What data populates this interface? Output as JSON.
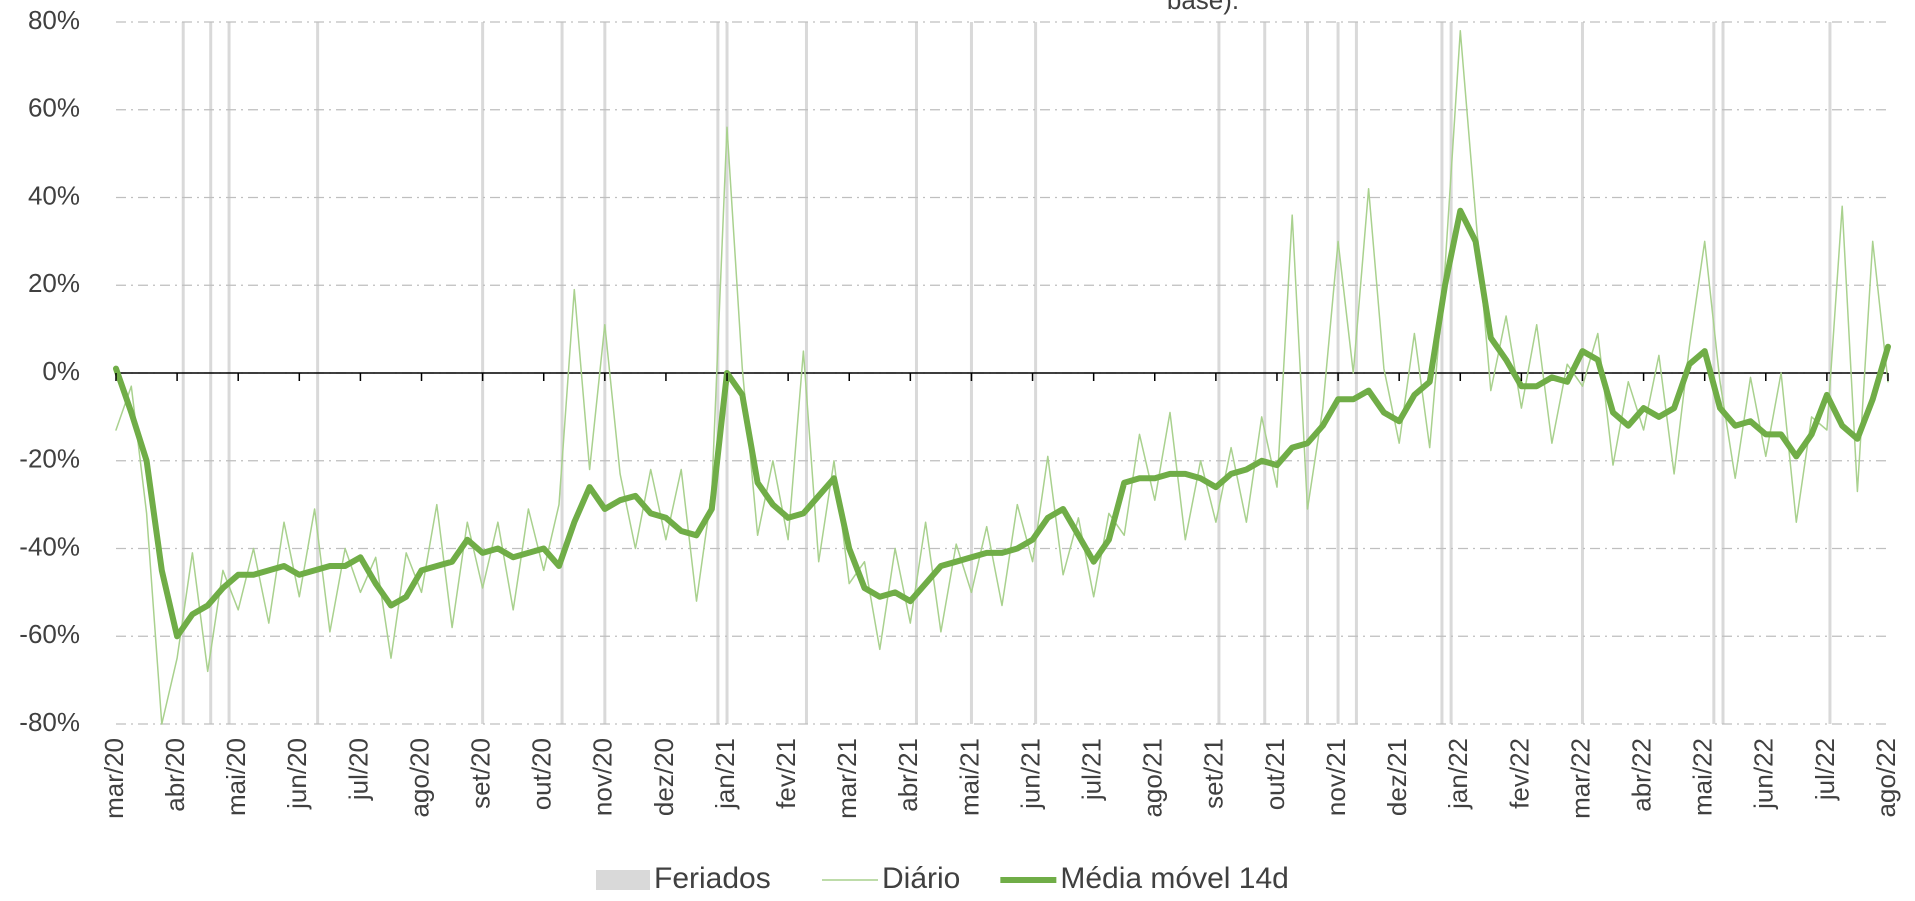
{
  "chart_data": {
    "type": "line",
    "title": "base).",
    "x": [
      0,
      0.25,
      0.5,
      0.75,
      1,
      1.25,
      1.5,
      1.75,
      2,
      2.25,
      2.5,
      2.75,
      3,
      3.25,
      3.5,
      3.75,
      4,
      4.25,
      4.5,
      4.75,
      5,
      5.25,
      5.5,
      5.75,
      6,
      6.25,
      6.5,
      6.75,
      7,
      7.25,
      7.5,
      7.75,
      8,
      8.25,
      8.5,
      8.75,
      9,
      9.25,
      9.5,
      9.75,
      10,
      10.25,
      10.5,
      10.75,
      11,
      11.25,
      11.5,
      11.75,
      12,
      12.25,
      12.5,
      12.75,
      13,
      13.25,
      13.5,
      13.75,
      14,
      14.25,
      14.5,
      14.75,
      15,
      15.25,
      15.5,
      15.75,
      16,
      16.25,
      16.5,
      16.75,
      17,
      17.25,
      17.5,
      17.75,
      18,
      18.25,
      18.5,
      18.75,
      19,
      19.25,
      19.5,
      19.75,
      20,
      20.25,
      20.5,
      20.75,
      21,
      21.25,
      21.5,
      21.75,
      22,
      22.25,
      22.5,
      22.75,
      23,
      23.25,
      23.5,
      23.75,
      24,
      24.25,
      24.5,
      24.75,
      25,
      25.25,
      25.5,
      25.75,
      26,
      26.25,
      26.5,
      26.75,
      27,
      27.25,
      27.5,
      27.75,
      28,
      28.25,
      28.5,
      28.75,
      29
    ],
    "series": [
      {
        "name": "Diário",
        "color": "#a9d18e",
        "width": 1.5,
        "values": [
          -13,
          -3,
          -32,
          -80,
          -65,
          -41,
          -68,
          -45,
          -54,
          -40,
          -57,
          -34,
          -51,
          -31,
          -59,
          -40,
          -50,
          -42,
          -65,
          -41,
          -50,
          -30,
          -58,
          -34,
          -49,
          -34,
          -54,
          -31,
          -45,
          -30,
          19,
          -22,
          11,
          -23,
          -40,
          -22,
          -38,
          -22,
          -52,
          -27,
          56,
          1,
          -37,
          -20,
          -38,
          5,
          -43,
          -20,
          -48,
          -43,
          -63,
          -40,
          -57,
          -34,
          -59,
          -39,
          -50,
          -35,
          -53,
          -30,
          -43,
          -19,
          -46,
          -33,
          -51,
          -32,
          -37,
          -14,
          -29,
          -9,
          -38,
          -20,
          -34,
          -17,
          -34,
          -10,
          -26,
          36,
          -31,
          -8,
          30,
          0,
          42,
          1,
          -16,
          9,
          -17,
          24,
          78,
          36,
          -4,
          13,
          -8,
          11,
          -16,
          2,
          -3,
          9,
          -21,
          -2,
          -13,
          4,
          -23,
          6,
          30,
          -2,
          -24,
          -1,
          -19,
          0,
          -34,
          -10,
          -13,
          38,
          -27,
          30,
          -2
        ]
      },
      {
        "name": "Média móvel 14d",
        "color": "#70ad47",
        "width": 6,
        "values": [
          1,
          -9,
          -20,
          -45,
          -60,
          -55,
          -53,
          -49,
          -46,
          -46,
          -45,
          -44,
          -46,
          -45,
          -44,
          -44,
          -42,
          -48,
          -53,
          -51,
          -45,
          -44,
          -43,
          -38,
          -41,
          -40,
          -42,
          -41,
          -40,
          -44,
          -34,
          -26,
          -31,
          -29,
          -28,
          -32,
          -33,
          -36,
          -37,
          -31,
          0,
          -5,
          -25,
          -30,
          -33,
          -32,
          -28,
          -24,
          -40,
          -49,
          -51,
          -50,
          -52,
          -48,
          -44,
          -43,
          -42,
          -41,
          -41,
          -40,
          -38,
          -33,
          -31,
          -37,
          -43,
          -38,
          -25,
          -24,
          -24,
          -23,
          -23,
          -24,
          -26,
          -23,
          -22,
          -20,
          -21,
          -17,
          -16,
          -12,
          -6,
          -6,
          -4,
          -9,
          -11,
          -5,
          -2,
          20,
          37,
          30,
          8,
          3,
          -3,
          -3,
          -1,
          -2,
          5,
          3,
          -9,
          -12,
          -8,
          -10,
          -8,
          2,
          5,
          -8,
          -12,
          -11,
          -14,
          -14,
          -19,
          -14,
          -5,
          -12,
          -15,
          -6,
          6
        ]
      }
    ],
    "holidays": {
      "name": "Feriados",
      "color": "#d9d9d9",
      "x": [
        1.1,
        1.55,
        1.85,
        3.3,
        6.0,
        7.3,
        8.0,
        9.85,
        10.0,
        11.3,
        13.1,
        14.0,
        15.05,
        18.05,
        18.8,
        19.5,
        20.0,
        20.3,
        21.7,
        21.85,
        24.0,
        26.15,
        26.3,
        28.05
      ]
    },
    "xlim": [
      0,
      29
    ],
    "xticks": [
      {
        "value": 0,
        "label": "mar/20"
      },
      {
        "value": 1,
        "label": "abr/20"
      },
      {
        "value": 2,
        "label": "mai/20"
      },
      {
        "value": 3,
        "label": "jun/20"
      },
      {
        "value": 4,
        "label": "jul/20"
      },
      {
        "value": 5,
        "label": "ago/20"
      },
      {
        "value": 6,
        "label": "set/20"
      },
      {
        "value": 7,
        "label": "out/20"
      },
      {
        "value": 8,
        "label": "nov/20"
      },
      {
        "value": 9,
        "label": "dez/20"
      },
      {
        "value": 10,
        "label": "jan/21"
      },
      {
        "value": 11,
        "label": "fev/21"
      },
      {
        "value": 12,
        "label": "mar/21"
      },
      {
        "value": 13,
        "label": "abr/21"
      },
      {
        "value": 14,
        "label": "mai/21"
      },
      {
        "value": 15,
        "label": "jun/21"
      },
      {
        "value": 16,
        "label": "jul/21"
      },
      {
        "value": 17,
        "label": "ago/21"
      },
      {
        "value": 18,
        "label": "set/21"
      },
      {
        "value": 19,
        "label": "out/21"
      },
      {
        "value": 20,
        "label": "nov/21"
      },
      {
        "value": 21,
        "label": "dez/21"
      },
      {
        "value": 22,
        "label": "jan/22"
      },
      {
        "value": 23,
        "label": "fev/22"
      },
      {
        "value": 24,
        "label": "mar/22"
      },
      {
        "value": 25,
        "label": "abr/22"
      },
      {
        "value": 26,
        "label": "mai/22"
      },
      {
        "value": 27,
        "label": "jun/22"
      },
      {
        "value": 28,
        "label": "jul/22"
      },
      {
        "value": 29,
        "label": "ago/22"
      }
    ],
    "ylim": [
      -80,
      80
    ],
    "yticks": [
      {
        "value": -80,
        "label": "-80%"
      },
      {
        "value": -60,
        "label": "-60%"
      },
      {
        "value": -40,
        "label": "-40%"
      },
      {
        "value": -20,
        "label": "-20%"
      },
      {
        "value": 0,
        "label": "0%"
      },
      {
        "value": 20,
        "label": "20%"
      },
      {
        "value": 40,
        "label": "40%"
      },
      {
        "value": 60,
        "label": "60%"
      },
      {
        "value": 80,
        "label": "80%"
      }
    ],
    "grid": true,
    "legend": "bottom"
  }
}
